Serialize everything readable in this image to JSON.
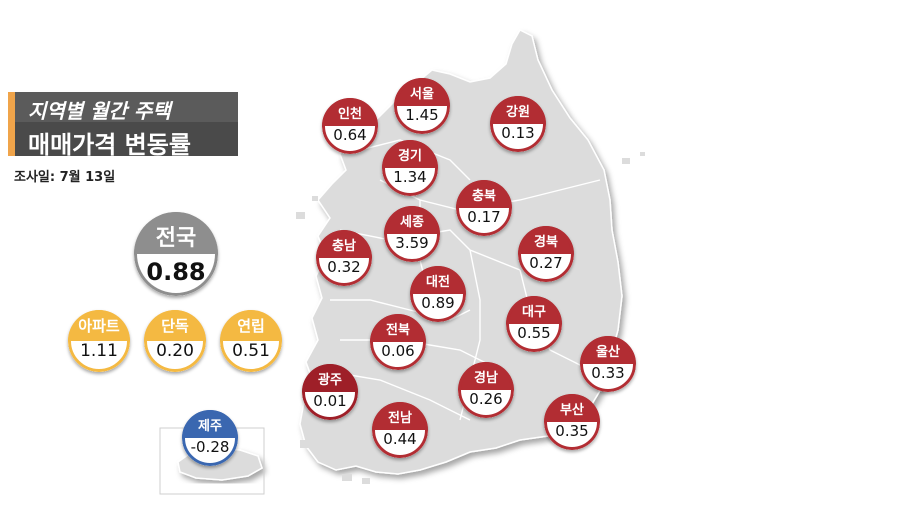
{
  "title": {
    "line1": "지역별 월간 주택",
    "line2": "매매가격 변동률"
  },
  "survey_date": "조사일: 7월 13일",
  "colors": {
    "region": "#b22d33",
    "national": "#8e8e8e",
    "type": "#f4b942",
    "jeju": "#3a67b0",
    "map_fill": "#dcdcdc"
  },
  "national": {
    "label": "전국",
    "value": "0.88"
  },
  "types": [
    {
      "label": "아파트",
      "value": "1.11"
    },
    {
      "label": "단독",
      "value": "0.20"
    },
    {
      "label": "연립",
      "value": "0.51"
    }
  ],
  "regions": [
    {
      "name": "인천",
      "value": "0.64"
    },
    {
      "name": "서울",
      "value": "1.45"
    },
    {
      "name": "강원",
      "value": "0.13"
    },
    {
      "name": "경기",
      "value": "1.34"
    },
    {
      "name": "충북",
      "value": "0.17"
    },
    {
      "name": "세종",
      "value": "3.59"
    },
    {
      "name": "충남",
      "value": "0.32"
    },
    {
      "name": "경북",
      "value": "0.27"
    },
    {
      "name": "대전",
      "value": "0.89"
    },
    {
      "name": "대구",
      "value": "0.55"
    },
    {
      "name": "전북",
      "value": "0.06"
    },
    {
      "name": "울산",
      "value": "0.33"
    },
    {
      "name": "광주",
      "value": "0.01"
    },
    {
      "name": "경남",
      "value": "0.26"
    },
    {
      "name": "전남",
      "value": "0.44"
    },
    {
      "name": "부산",
      "value": "0.35"
    },
    {
      "name": "제주",
      "value": "-0.28"
    }
  ]
}
